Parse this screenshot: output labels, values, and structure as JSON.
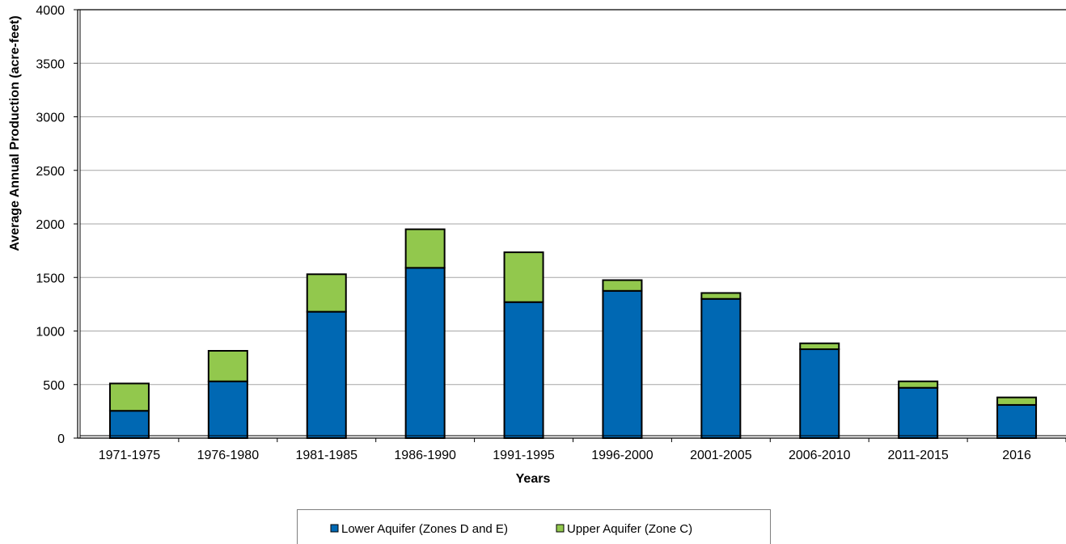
{
  "chart_data": {
    "type": "bar",
    "stacked": true,
    "title": "",
    "xlabel": "Years",
    "ylabel": "Average Annual Production (acre-feet)",
    "ylim": [
      0,
      4000
    ],
    "yticks": [
      0,
      500,
      1000,
      1500,
      2000,
      2500,
      3000,
      3500,
      4000
    ],
    "grid": true,
    "legend_position": "bottom",
    "categories": [
      "1971-1975",
      "1976-1980",
      "1981-1985",
      "1986-1990",
      "1991-1995",
      "1996-2000",
      "2001-2005",
      "2006-2010",
      "2011-2015",
      "2016"
    ],
    "series": [
      {
        "name": "Lower Aquifer (Zones D and E)",
        "color": "#0068B3",
        "values": [
          255,
          530,
          1180,
          1590,
          1270,
          1375,
          1300,
          830,
          470,
          310
        ]
      },
      {
        "name": "Upper Aquifer (Zone C)",
        "color": "#92C84D",
        "values": [
          255,
          285,
          350,
          360,
          465,
          100,
          55,
          55,
          60,
          70
        ]
      }
    ]
  }
}
